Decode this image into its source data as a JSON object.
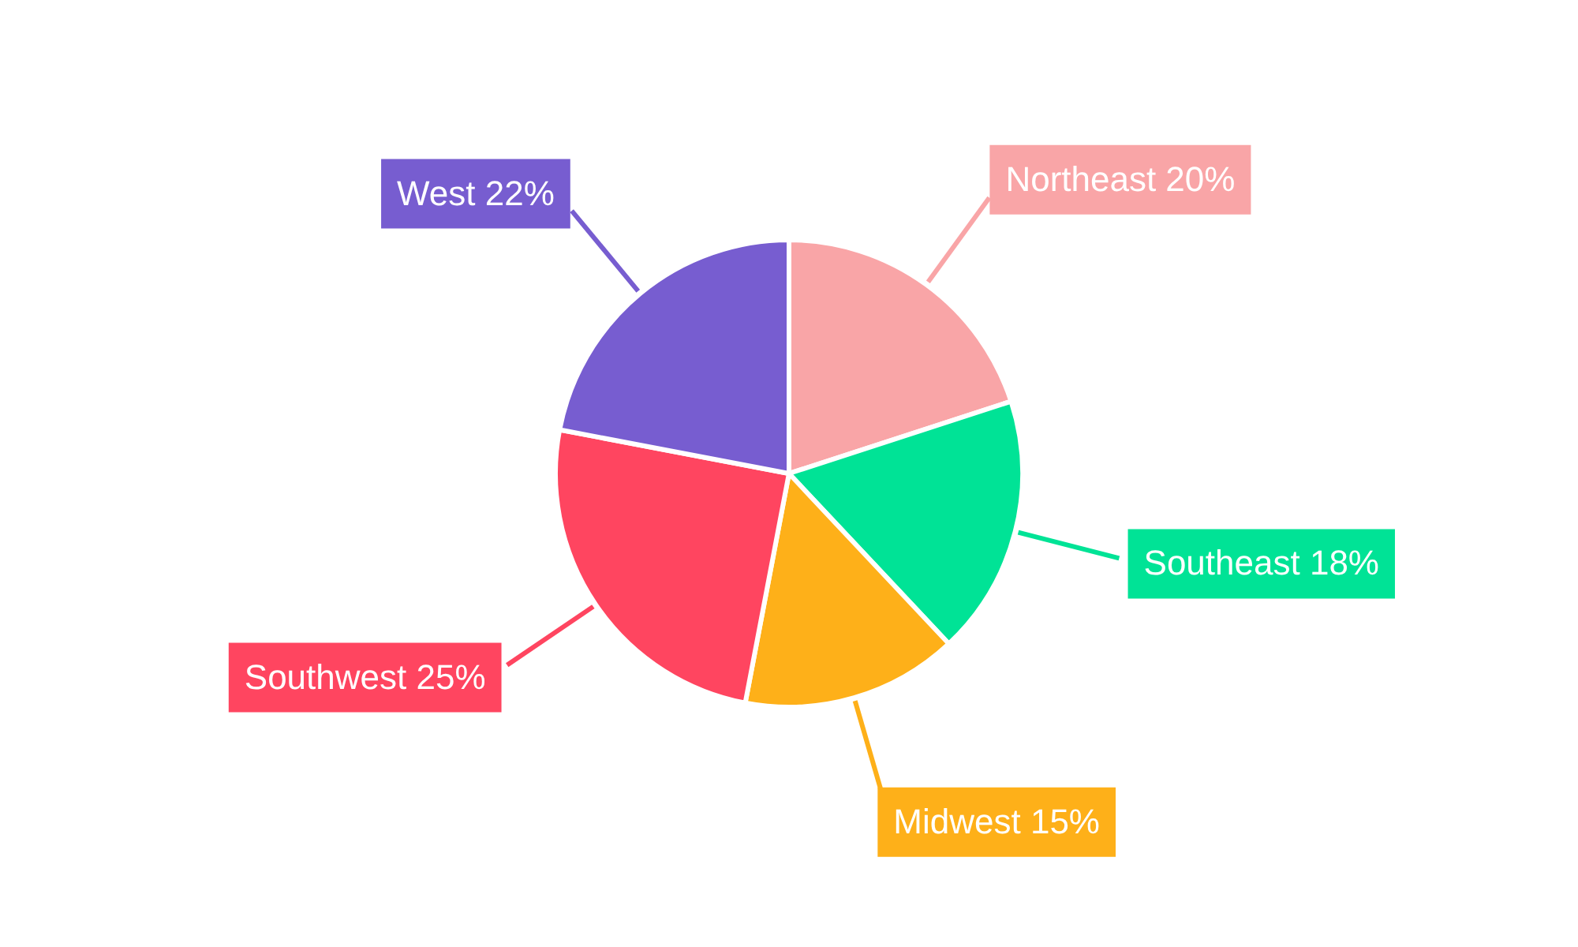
{
  "chart_data": {
    "type": "pie",
    "categories": [
      "Northeast",
      "Southeast",
      "Midwest",
      "Southwest",
      "West"
    ],
    "values": [
      20,
      18,
      15,
      25,
      22
    ],
    "value_labels": [
      "20%",
      "18%",
      "15%",
      "25%",
      "22%"
    ],
    "colors": [
      "#f9a5a7",
      "#00e396",
      "#feb019",
      "#ff4560",
      "#775dd0"
    ]
  }
}
